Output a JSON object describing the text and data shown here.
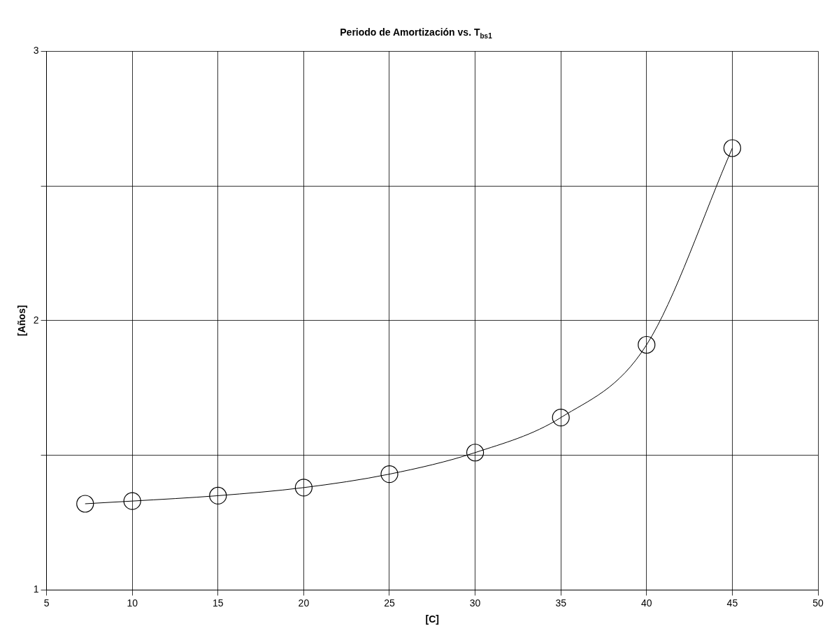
{
  "chart_data": {
    "type": "line",
    "title": "Periodo de Amortización vs. T$_{bs1}$",
    "xlabel": "[C]",
    "ylabel": "[Años]",
    "x": [
      7.25,
      10,
      15,
      20,
      25,
      30,
      35,
      40,
      45
    ],
    "series": [
      {
        "color": "#000000",
        "values": [
          1.32,
          1.33,
          1.35,
          1.38,
          1.43,
          1.51,
          1.64,
          1.91,
          2.64
        ]
      }
    ],
    "xlim": [
      5,
      50
    ],
    "xticks": [
      5,
      10,
      15,
      20,
      25,
      30,
      35,
      40,
      45,
      50
    ],
    "ylim": [
      1,
      3
    ],
    "yticks": [
      1,
      {
        "value": 1.5,
        "label": null
      },
      2,
      {
        "value": 2.5,
        "label": null
      },
      3
    ],
    "grid": true,
    "legend": false,
    "marker": "circle",
    "line_style": "solid"
  }
}
